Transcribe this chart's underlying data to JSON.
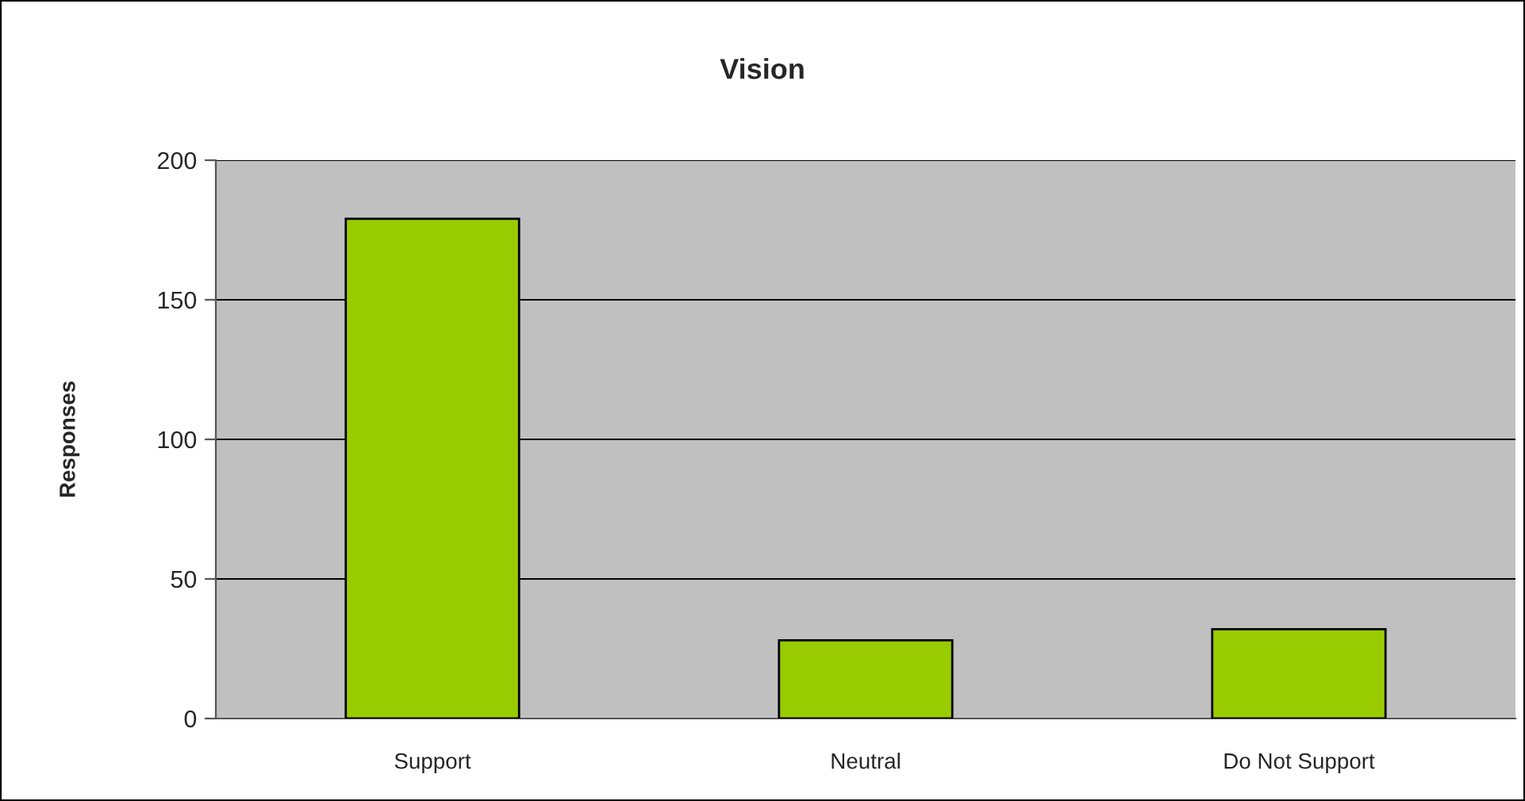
{
  "chart_data": {
    "type": "bar",
    "title": "Vision",
    "ylabel": "Responses",
    "categories": [
      "Support",
      "Neutral",
      "Do Not Support"
    ],
    "values": [
      179,
      28,
      32
    ],
    "color": "#99cc00",
    "ylim": [
      0,
      200
    ],
    "yticks": [
      0,
      50,
      100,
      150,
      200
    ],
    "grid": "y",
    "legend": false
  }
}
